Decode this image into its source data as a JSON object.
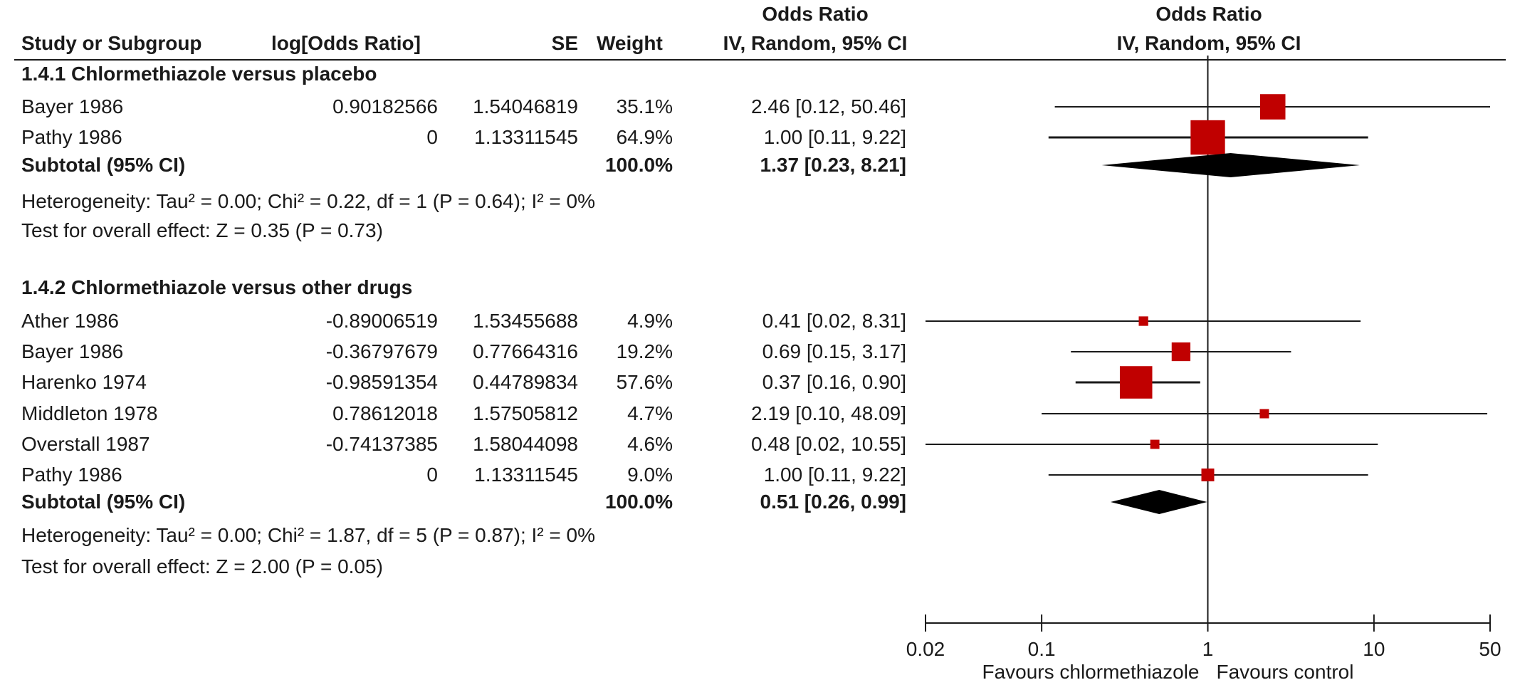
{
  "header": {
    "study": "Study or Subgroup",
    "logor": "log[Odds Ratio]",
    "se": "SE",
    "weight": "Weight",
    "or_top": "Odds Ratio",
    "or_bottom": "IV, Random, 95% CI",
    "plot_top": "Odds Ratio",
    "plot_bottom": "IV, Random, 95% CI"
  },
  "subgroups": [
    {
      "title": "1.4.1 Chlormethiazole versus placebo",
      "studies": [
        {
          "study": "Bayer 1986",
          "logor": "0.90182566",
          "se": "1.54046819",
          "weight": "35.1%",
          "ci": "2.46 [0.12, 50.46]"
        },
        {
          "study": "Pathy 1986",
          "logor": "0",
          "se": "1.13311545",
          "weight": "64.9%",
          "ci": "1.00 [0.11, 9.22]"
        }
      ],
      "subtotal": {
        "label": "Subtotal (95% CI)",
        "weight": "100.0%",
        "ci": "1.37 [0.23, 8.21]"
      },
      "heterogeneity": "Heterogeneity: Tau² = 0.00; Chi² = 0.22, df = 1 (P = 0.64); I² = 0%",
      "overall": "Test for overall effect: Z = 0.35 (P = 0.73)"
    },
    {
      "title": "1.4.2 Chlormethiazole versus other drugs",
      "studies": [
        {
          "study": "Ather 1986",
          "logor": "-0.89006519",
          "se": "1.53455688",
          "weight": "4.9%",
          "ci": "0.41 [0.02, 8.31]"
        },
        {
          "study": "Bayer 1986",
          "logor": "-0.36797679",
          "se": "0.77664316",
          "weight": "19.2%",
          "ci": "0.69 [0.15, 3.17]"
        },
        {
          "study": "Harenko 1974",
          "logor": "-0.98591354",
          "se": "0.44789834",
          "weight": "57.6%",
          "ci": "0.37 [0.16, 0.90]"
        },
        {
          "study": "Middleton 1978",
          "logor": "0.78612018",
          "se": "1.57505812",
          "weight": "4.7%",
          "ci": "2.19 [0.10, 48.09]"
        },
        {
          "study": "Overstall 1987",
          "logor": "-0.74137385",
          "se": "1.58044098",
          "weight": "4.6%",
          "ci": "0.48 [0.02, 10.55]"
        },
        {
          "study": "Pathy 1986",
          "logor": "0",
          "se": "1.13311545",
          "weight": "9.0%",
          "ci": "1.00 [0.11, 9.22]"
        }
      ],
      "subtotal": {
        "label": "Subtotal (95% CI)",
        "weight": "100.0%",
        "ci": "0.51 [0.26, 0.99]"
      },
      "heterogeneity": "Heterogeneity: Tau² = 0.00; Chi² = 1.87, df = 5 (P = 0.87); I² = 0%",
      "overall": "Test for overall effect: Z = 2.00 (P = 0.05)"
    }
  ],
  "chart_data": {
    "type": "forest",
    "scale": "log",
    "xlim": [
      0.02,
      50
    ],
    "ticks": [
      "0.02",
      "0.1",
      "1",
      "10",
      "50"
    ],
    "reference_line": 1,
    "xlabel_left": "Favours chlormethiazole",
    "xlabel_right": "Favours control",
    "marker_color": "#c00000",
    "series": [
      {
        "name": "1.4.1 Chlormethiazole versus placebo",
        "studies": [
          {
            "or": 2.46,
            "lo": 0.12,
            "hi": 50.46,
            "weight": 35.1
          },
          {
            "or": 1.0,
            "lo": 0.11,
            "hi": 9.22,
            "weight": 64.9
          }
        ],
        "diamond": {
          "or": 1.37,
          "lo": 0.23,
          "hi": 8.21
        }
      },
      {
        "name": "1.4.2 Chlormethiazole versus other drugs",
        "studies": [
          {
            "or": 0.41,
            "lo": 0.02,
            "hi": 8.31,
            "weight": 4.9
          },
          {
            "or": 0.69,
            "lo": 0.15,
            "hi": 3.17,
            "weight": 19.2
          },
          {
            "or": 0.37,
            "lo": 0.16,
            "hi": 0.9,
            "weight": 57.6
          },
          {
            "or": 2.19,
            "lo": 0.1,
            "hi": 48.09,
            "weight": 4.7
          },
          {
            "or": 0.48,
            "lo": 0.02,
            "hi": 10.55,
            "weight": 4.6
          },
          {
            "or": 1.0,
            "lo": 0.11,
            "hi": 9.22,
            "weight": 9.0
          }
        ],
        "diamond": {
          "or": 0.51,
          "lo": 0.26,
          "hi": 0.99
        }
      }
    ]
  }
}
